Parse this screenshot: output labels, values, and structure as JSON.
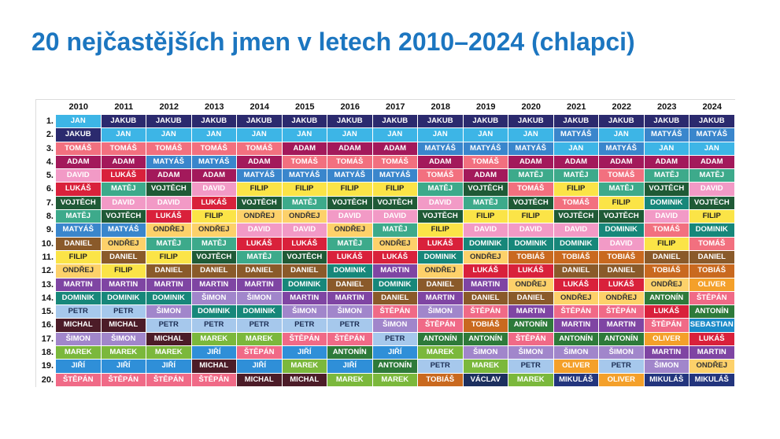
{
  "chart_data": {
    "type": "table",
    "title": "20 nejčastějších jmen v letech 2010–2024 (chlapci)",
    "columns": [
      "2010",
      "2011",
      "2012",
      "2013",
      "2014",
      "2015",
      "2016",
      "2017",
      "2018",
      "2019",
      "2020",
      "2021",
      "2022",
      "2023",
      "2024"
    ],
    "row_labels": [
      "1.",
      "2.",
      "3.",
      "4.",
      "5.",
      "6.",
      "7.",
      "8.",
      "9.",
      "10.",
      "11.",
      "12.",
      "13.",
      "14.",
      "15.",
      "16.",
      "17.",
      "18.",
      "19.",
      "20."
    ],
    "rows": [
      [
        "JAN",
        "JAKUB",
        "JAKUB",
        "JAKUB",
        "JAKUB",
        "JAKUB",
        "JAKUB",
        "JAKUB",
        "JAKUB",
        "JAKUB",
        "JAKUB",
        "JAKUB",
        "JAKUB",
        "JAKUB",
        "JAKUB"
      ],
      [
        "JAKUB",
        "JAN",
        "JAN",
        "JAN",
        "JAN",
        "JAN",
        "JAN",
        "JAN",
        "JAN",
        "JAN",
        "JAN",
        "MATYÁŠ",
        "JAN",
        "MATYÁŠ",
        "MATYÁŠ"
      ],
      [
        "TOMÁŠ",
        "TOMÁŠ",
        "TOMÁŠ",
        "TOMÁŠ",
        "TOMÁŠ",
        "ADAM",
        "ADAM",
        "ADAM",
        "MATYÁŠ",
        "MATYÁŠ",
        "MATYÁŠ",
        "JAN",
        "MATYÁŠ",
        "JAN",
        "JAN"
      ],
      [
        "ADAM",
        "ADAM",
        "MATYÁŠ",
        "MATYÁŠ",
        "ADAM",
        "TOMÁŠ",
        "TOMÁŠ",
        "TOMÁŠ",
        "ADAM",
        "TOMÁŠ",
        "ADAM",
        "ADAM",
        "ADAM",
        "ADAM",
        "ADAM"
      ],
      [
        "DAVID",
        "LUKÁŠ",
        "ADAM",
        "ADAM",
        "MATYÁŠ",
        "MATYÁŠ",
        "MATYÁŠ",
        "MATYÁŠ",
        "TOMÁŠ",
        "ADAM",
        "MATĚJ",
        "MATĚJ",
        "TOMÁŠ",
        "MATĚJ",
        "MATĚJ"
      ],
      [
        "LUKÁŠ",
        "MATĚJ",
        "VOJTĚCH",
        "DAVID",
        "FILIP",
        "FILIP",
        "FILIP",
        "FILIP",
        "MATĚJ",
        "VOJTĚCH",
        "TOMÁŠ",
        "FILIP",
        "MATĚJ",
        "VOJTĚCH",
        "DAVID"
      ],
      [
        "VOJTĚCH",
        "DAVID",
        "DAVID",
        "LUKÁŠ",
        "VOJTĚCH",
        "MATĚJ",
        "VOJTĚCH",
        "VOJTĚCH",
        "DAVID",
        "MATĚJ",
        "VOJTĚCH",
        "TOMÁŠ",
        "FILIP",
        "DOMINIK",
        "VOJTĚCH"
      ],
      [
        "MATĚJ",
        "VOJTĚCH",
        "LUKÁŠ",
        "FILIP",
        "ONDŘEJ",
        "ONDŘEJ",
        "DAVID",
        "DAVID",
        "VOJTĚCH",
        "FILIP",
        "FILIP",
        "VOJTĚCH",
        "VOJTĚCH",
        "DAVID",
        "FILIP"
      ],
      [
        "MATYÁŠ",
        "MATYÁŠ",
        "ONDŘEJ",
        "ONDŘEJ",
        "DAVID",
        "DAVID",
        "ONDŘEJ",
        "MATĚJ",
        "FILIP",
        "DAVID",
        "DAVID",
        "DAVID",
        "DOMINIK",
        "TOMÁŠ",
        "DOMINIK"
      ],
      [
        "DANIEL",
        "ONDŘEJ",
        "MATĚJ",
        "MATĚJ",
        "LUKÁŠ",
        "LUKÁŠ",
        "MATĚJ",
        "ONDŘEJ",
        "LUKÁŠ",
        "DOMINIK",
        "DOMINIK",
        "DOMINIK",
        "DAVID",
        "FILIP",
        "TOMÁŠ"
      ],
      [
        "FILIP",
        "DANIEL",
        "FILIP",
        "VOJTĚCH",
        "MATĚJ",
        "VOJTĚCH",
        "LUKÁŠ",
        "LUKÁŠ",
        "DOMINIK",
        "ONDŘEJ",
        "TOBIÁŠ",
        "TOBIÁŠ",
        "TOBIÁŠ",
        "DANIEL",
        "DANIEL"
      ],
      [
        "ONDŘEJ",
        "FILIP",
        "DANIEL",
        "DANIEL",
        "DANIEL",
        "DANIEL",
        "DOMINIK",
        "MARTIN",
        "ONDŘEJ",
        "LUKÁŠ",
        "LUKÁŠ",
        "DANIEL",
        "DANIEL",
        "TOBIÁŠ",
        "TOBIÁŠ"
      ],
      [
        "MARTIN",
        "MARTIN",
        "MARTIN",
        "MARTIN",
        "MARTIN",
        "DOMINIK",
        "DANIEL",
        "DOMINIK",
        "DANIEL",
        "MARTIN",
        "ONDŘEJ",
        "LUKÁŠ",
        "LUKÁŠ",
        "ONDŘEJ",
        "OLIVER"
      ],
      [
        "DOMINIK",
        "DOMINIK",
        "DOMINIK",
        "ŠIMON",
        "ŠIMON",
        "MARTIN",
        "MARTIN",
        "DANIEL",
        "MARTIN",
        "DANIEL",
        "DANIEL",
        "ONDŘEJ",
        "ONDŘEJ",
        "ANTONÍN",
        "ŠTĚPÁN"
      ],
      [
        "PETR",
        "PETR",
        "ŠIMON",
        "DOMINIK",
        "DOMINIK",
        "ŠIMON",
        "ŠIMON",
        "ŠTĚPÁN",
        "ŠIMON",
        "ŠTĚPÁN",
        "MARTIN",
        "ŠTĚPÁN",
        "ŠTĚPÁN",
        "LUKÁŠ",
        "ANTONÍN"
      ],
      [
        "MICHAL",
        "MICHAL",
        "PETR",
        "PETR",
        "PETR",
        "PETR",
        "PETR",
        "ŠIMON",
        "ŠTĚPÁN",
        "TOBIÁŠ",
        "ANTONÍN",
        "MARTIN",
        "MARTIN",
        "ŠTĚPÁN",
        "SEBASTIAN"
      ],
      [
        "ŠIMON",
        "ŠIMON",
        "MICHAL",
        "MAREK",
        "MAREK",
        "ŠTĚPÁN",
        "ŠTĚPÁN",
        "PETR",
        "ANTONÍN",
        "ANTONÍN",
        "ŠTĚPÁN",
        "ANTONÍN",
        "ANTONÍN",
        "OLIVER",
        "LUKÁŠ"
      ],
      [
        "MAREK",
        "MAREK",
        "MAREK",
        "JIŘÍ",
        "ŠTĚPÁN",
        "JIŘÍ",
        "ANTONÍN",
        "JIŘÍ",
        "MAREK",
        "ŠIMON",
        "ŠIMON",
        "ŠIMON",
        "ŠIMON",
        "MARTIN",
        "MARTIN"
      ],
      [
        "JIŘÍ",
        "JIŘÍ",
        "JIŘÍ",
        "MICHAL",
        "JIŘÍ",
        "MAREK",
        "JIŘÍ",
        "ANTONÍN",
        "PETR",
        "MAREK",
        "PETR",
        "OLIVER",
        "PETR",
        "ŠIMON",
        "ONDŘEJ"
      ],
      [
        "ŠTĚPÁN",
        "ŠTĚPÁN",
        "ŠTĚPÁN",
        "ŠTĚPÁN",
        "MICHAL",
        "MICHAL",
        "MAREK",
        "MAREK",
        "TOBIÁŠ",
        "VÁCLAV",
        "MAREK",
        "MIKULÁŠ",
        "OLIVER",
        "MIKULÁŠ",
        "MIKULÁŠ"
      ]
    ]
  },
  "name_colors": {
    "JAN": {
      "bg": "#3DB5E6",
      "fg": "#FFFFFF"
    },
    "JAKUB": {
      "bg": "#2B2A6E",
      "fg": "#FFFFFF"
    },
    "TOMÁŠ": {
      "bg": "#F2707F",
      "fg": "#FFFFFF"
    },
    "ADAM": {
      "bg": "#A3195B",
      "fg": "#FFFFFF"
    },
    "MATYÁŠ": {
      "bg": "#3A86CC",
      "fg": "#FFFFFF"
    },
    "DAVID": {
      "bg": "#F29AC6",
      "fg": "#FFFFFF"
    },
    "LUKÁŠ": {
      "bg": "#D9213B",
      "fg": "#FFFFFF"
    },
    "MATĚJ": {
      "bg": "#3DAA8B",
      "fg": "#FFFFFF"
    },
    "VOJTĚCH": {
      "bg": "#1F5A36",
      "fg": "#FFFFFF"
    },
    "FILIP": {
      "bg": "#FBE447",
      "fg": "#222222"
    },
    "ONDŘEJ": {
      "bg": "#FDD16A",
      "fg": "#333333"
    },
    "DANIEL": {
      "bg": "#8A5A2A",
      "fg": "#FFFFFF"
    },
    "DOMINIK": {
      "bg": "#17877A",
      "fg": "#FFFFFF"
    },
    "MARTIN": {
      "bg": "#7F45A3",
      "fg": "#FFFFFF"
    },
    "ŠIMON": {
      "bg": "#A186CB",
      "fg": "#FFFFFF"
    },
    "PETR": {
      "bg": "#A6C8EC",
      "fg": "#1D2F55"
    },
    "MICHAL": {
      "bg": "#4C1C28",
      "fg": "#FFFFFF"
    },
    "MAREK": {
      "bg": "#7BB83C",
      "fg": "#FFFFFF"
    },
    "JIŘÍ": {
      "bg": "#2F8FD8",
      "fg": "#FFFFFF"
    },
    "ŠTĚPÁN": {
      "bg": "#F06A87",
      "fg": "#FFFFFF"
    },
    "ANTONÍN": {
      "bg": "#2E7A3A",
      "fg": "#FFFFFF"
    },
    "TOBIÁŠ": {
      "bg": "#C9691F",
      "fg": "#FFFFFF"
    },
    "OLIVER": {
      "bg": "#F4A02A",
      "fg": "#FFFFFF"
    },
    "SEBASTIAN": {
      "bg": "#1C8BC9",
      "fg": "#FFFFFF"
    },
    "MIKULÁŠ": {
      "bg": "#23357D",
      "fg": "#FFFFFF"
    },
    "VÁCLAV": {
      "bg": "#1C2F5E",
      "fg": "#FFFFFF"
    }
  },
  "title_color": "#1C76C0"
}
